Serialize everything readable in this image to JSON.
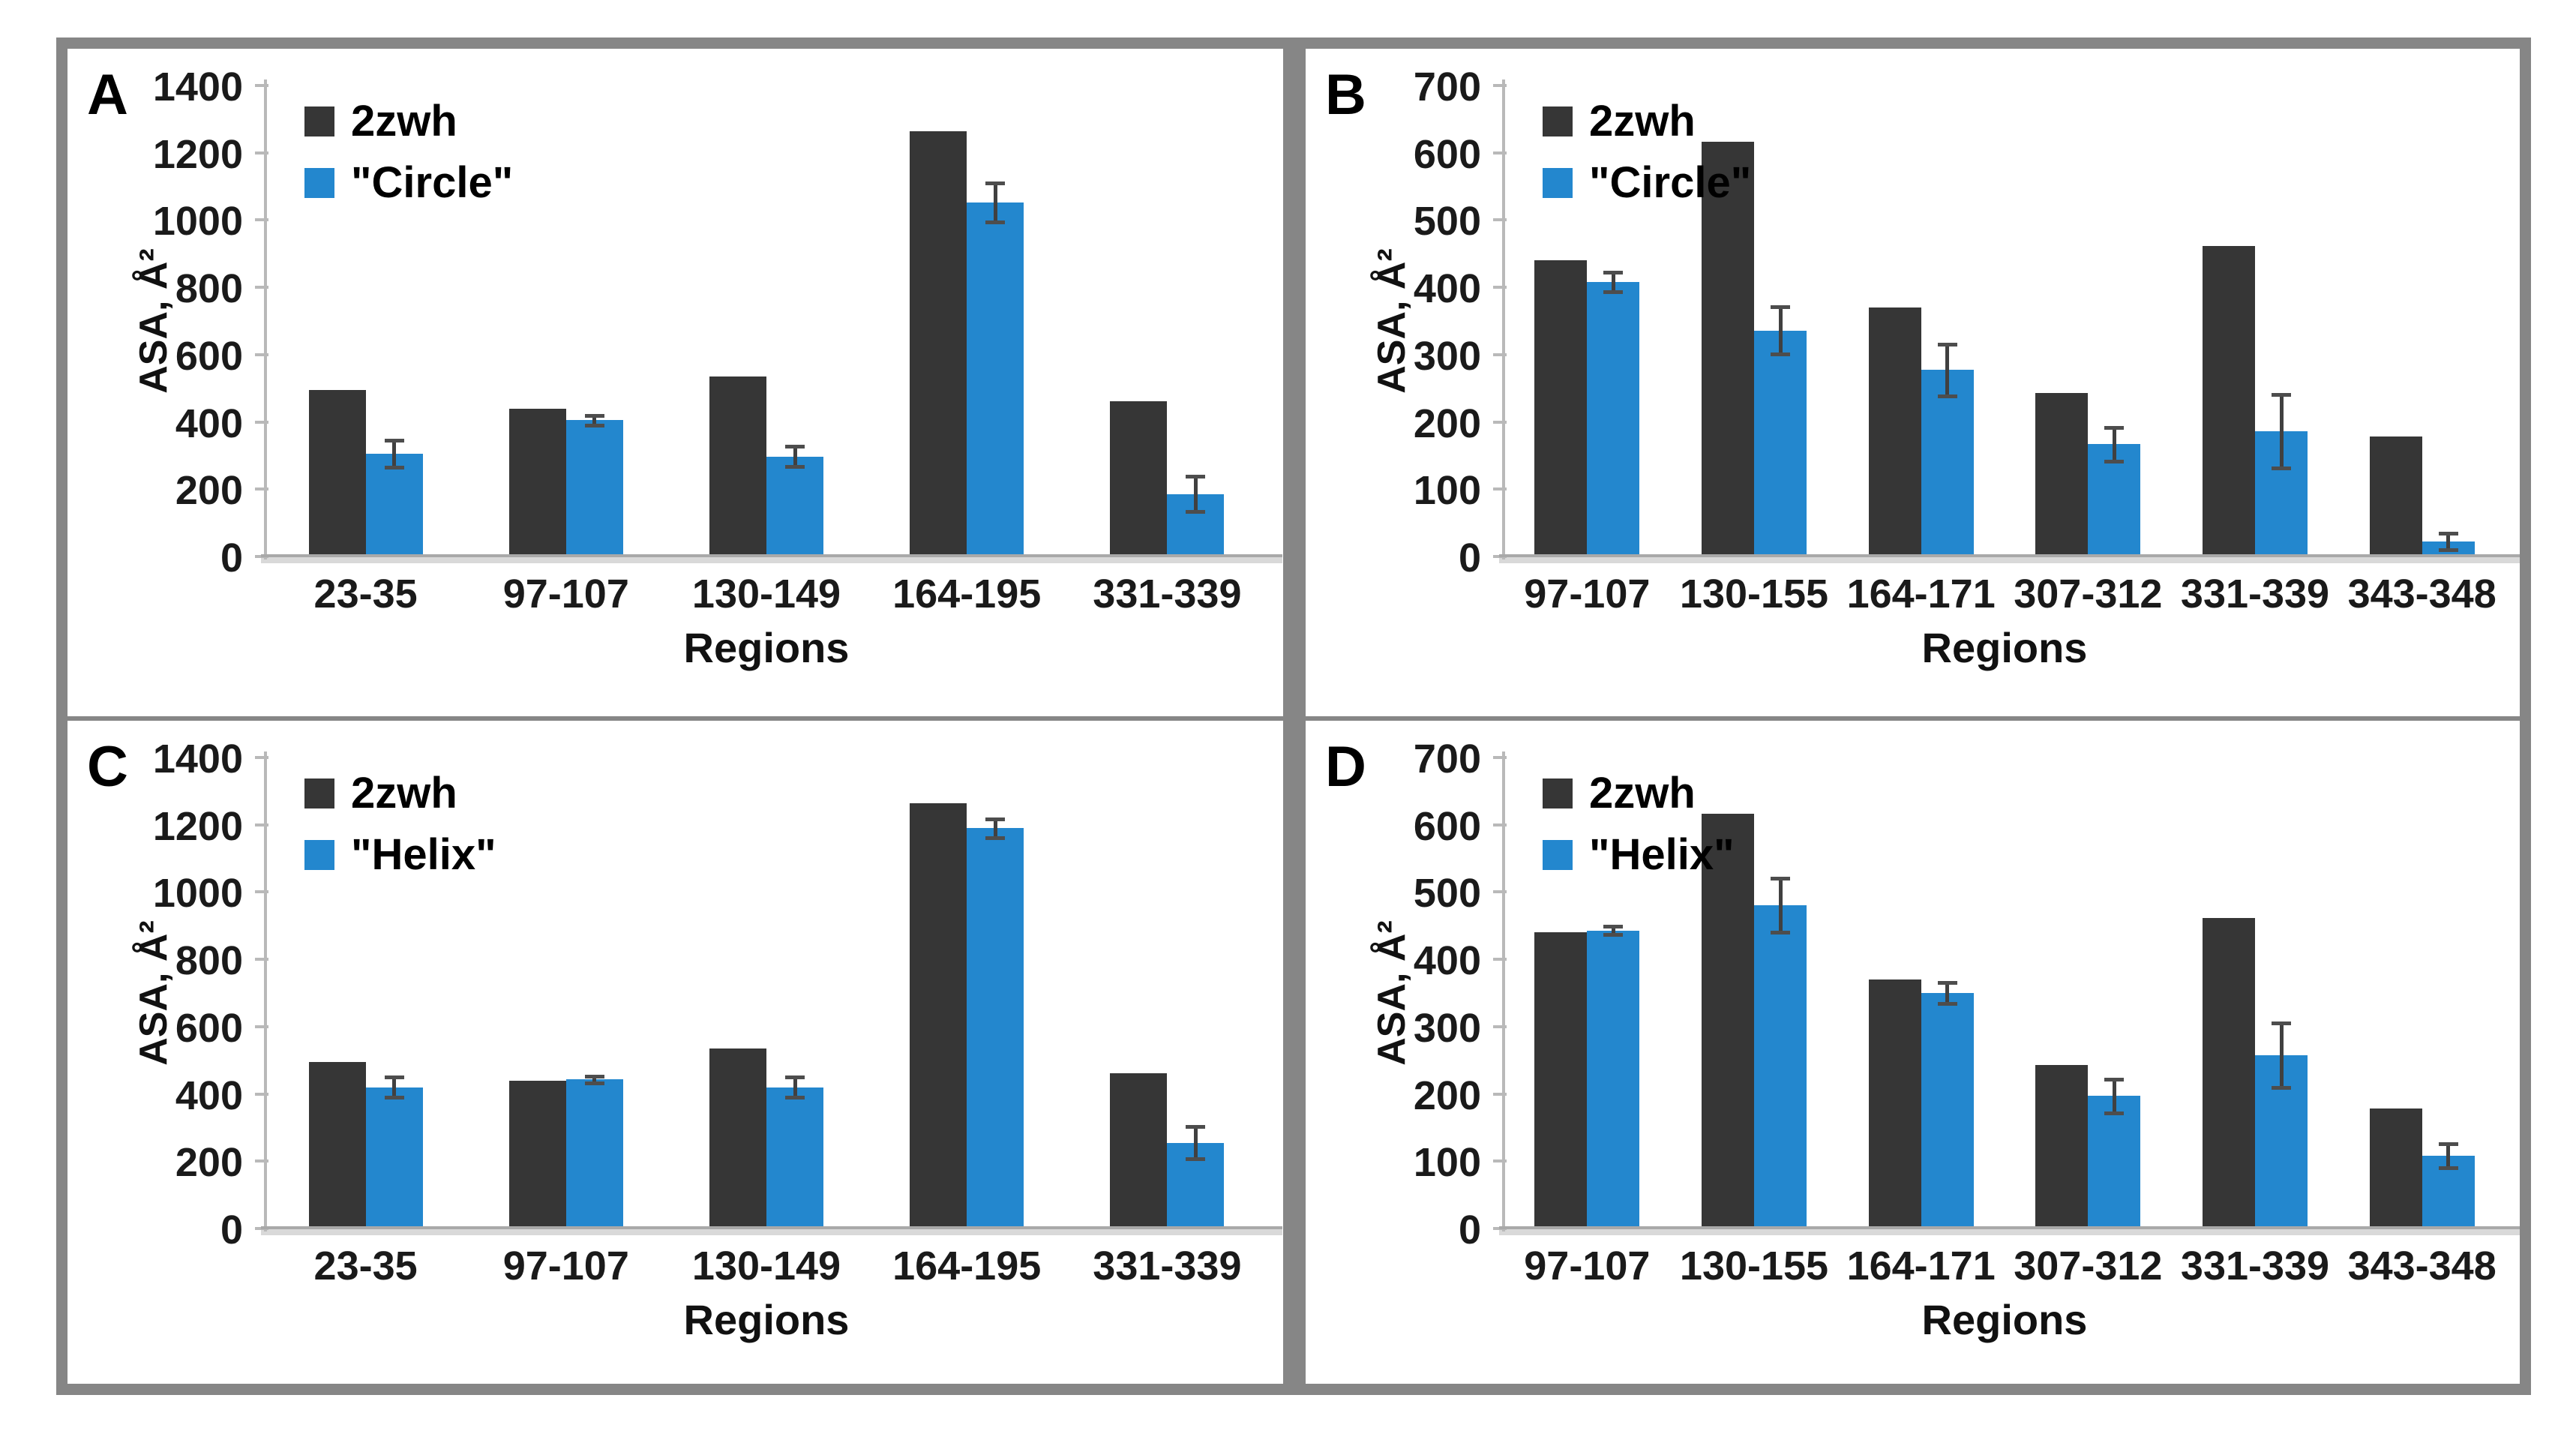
{
  "colors": {
    "dark_series": "#363636",
    "blue_series": "#2387CE",
    "frame_gray": "#868686",
    "axis_gray": "#b9b9b9",
    "baseline_strip": "#d9d9d9",
    "error_bar": "#404040",
    "text": "#1a1a1a"
  },
  "chart_data": [
    {
      "type": "bar",
      "panel_letter": "A",
      "title": "",
      "xlabel": "Regions",
      "ylabel": "ASA, Å²",
      "ylim": [
        0,
        1400
      ],
      "ytick_step": 200,
      "grid": false,
      "legend_position": "upper-left",
      "categories": [
        "23-35",
        "97-107",
        "130-149",
        "164-195",
        "331-339"
      ],
      "series": [
        {
          "name": "2zwh",
          "color": "dark",
          "values": [
            495,
            440,
            535,
            1263,
            462
          ]
        },
        {
          "name": "\"Circle\"",
          "color": "blue",
          "values": [
            305,
            405,
            297,
            1052,
            186
          ],
          "errors": [
            40,
            14,
            30,
            58,
            52
          ]
        }
      ]
    },
    {
      "type": "bar",
      "panel_letter": "B",
      "title": "",
      "xlabel": "Regions",
      "ylabel": "ASA, Å²",
      "ylim": [
        0,
        700
      ],
      "ytick_step": 100,
      "grid": false,
      "legend_position": "upper-left",
      "categories": [
        "97-107",
        "130-155",
        "164-171",
        "307-312",
        "331-339",
        "343-348"
      ],
      "series": [
        {
          "name": "2zwh",
          "color": "dark",
          "values": [
            440,
            616,
            370,
            243,
            462,
            178
          ]
        },
        {
          "name": "\"Circle\"",
          "color": "blue",
          "values": [
            408,
            336,
            277,
            167,
            186,
            22
          ],
          "errors": [
            15,
            35,
            38,
            25,
            55,
            12
          ]
        }
      ]
    },
    {
      "type": "bar",
      "panel_letter": "C",
      "title": "",
      "xlabel": "Regions",
      "ylabel": "ASA, Å²",
      "ylim": [
        0,
        1400
      ],
      "ytick_step": 200,
      "grid": false,
      "legend_position": "upper-left",
      "categories": [
        "23-35",
        "97-107",
        "130-149",
        "164-195",
        "331-339"
      ],
      "series": [
        {
          "name": "2zwh",
          "color": "dark",
          "values": [
            495,
            440,
            535,
            1263,
            462
          ]
        },
        {
          "name": "\"Helix\"",
          "color": "blue",
          "values": [
            420,
            443,
            420,
            1190,
            255
          ],
          "errors": [
            30,
            10,
            30,
            28,
            48
          ]
        }
      ]
    },
    {
      "type": "bar",
      "panel_letter": "D",
      "title": "",
      "xlabel": "Regions",
      "ylabel": "ASA, Å²",
      "ylim": [
        0,
        700
      ],
      "ytick_step": 100,
      "grid": false,
      "legend_position": "upper-left",
      "categories": [
        "97-107",
        "130-155",
        "164-171",
        "307-312",
        "331-339",
        "343-348"
      ],
      "series": [
        {
          "name": "2zwh",
          "color": "dark",
          "values": [
            440,
            616,
            370,
            243,
            462,
            178
          ]
        },
        {
          "name": "\"Helix\"",
          "color": "blue",
          "values": [
            443,
            480,
            350,
            197,
            257,
            108
          ],
          "errors": [
            6,
            40,
            16,
            25,
            48,
            18
          ]
        }
      ]
    }
  ]
}
